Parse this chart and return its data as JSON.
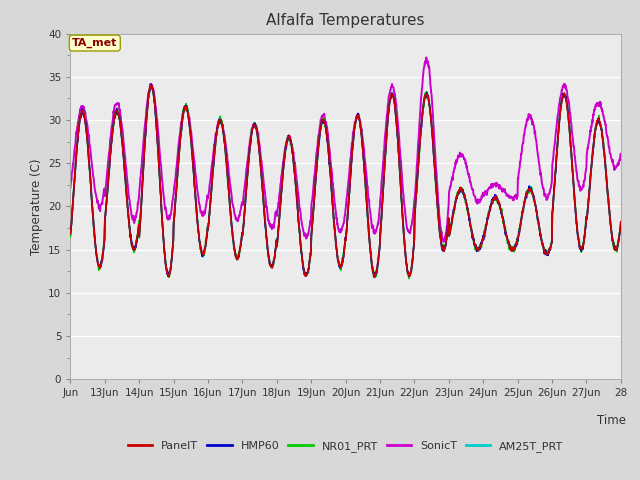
{
  "title": "Alfalfa Temperatures",
  "ylabel": "Temperature (C)",
  "xlabel": "Time",
  "annotation": "TA_met",
  "ylim": [
    0,
    40
  ],
  "yticks": [
    0,
    5,
    10,
    15,
    20,
    25,
    30,
    35,
    40
  ],
  "series": [
    {
      "label": "PanelT",
      "color": "#cc0000",
      "lw": 1.2
    },
    {
      "label": "HMP60",
      "color": "#0000cc",
      "lw": 1.2
    },
    {
      "label": "NR01_PRT",
      "color": "#00cc00",
      "lw": 1.2
    },
    {
      "label": "SonicT",
      "color": "#cc00cc",
      "lw": 1.4
    },
    {
      "label": "AM25T_PRT",
      "color": "#00cccc",
      "lw": 1.2
    }
  ],
  "bg_color": "#d8d8d8",
  "plot_bg": "#ebebeb",
  "annotation_box_color": "#ffffcc",
  "annotation_text_color": "#880000",
  "annotation_edge_color": "#999900",
  "grid_color": "#ffffff",
  "x_start": 12,
  "x_end": 28,
  "xtick_labels": [
    "Jun",
    "13Jun",
    "14Jun",
    "15Jun",
    "16Jun",
    "17Jun",
    "18Jun",
    "19Jun",
    "20Jun",
    "21Jun",
    "22Jun",
    "23Jun",
    "24Jun",
    "25Jun",
    "26Jun",
    "27Jun",
    "28"
  ],
  "xtick_positions": [
    12,
    13,
    14,
    15,
    16,
    17,
    18,
    19,
    20,
    21,
    22,
    23,
    24,
    25,
    26,
    27,
    28
  ],
  "day_peaks": [
    31.0,
    31.0,
    34.0,
    31.5,
    30.0,
    29.5,
    28.0,
    30.0,
    30.5,
    33.0,
    33.0,
    22.0,
    21.0,
    22.0,
    33.0,
    30.0
  ],
  "day_troughs": [
    13.0,
    15.0,
    12.0,
    14.5,
    14.0,
    13.0,
    12.0,
    13.0,
    12.0,
    12.0,
    15.0,
    15.0,
    15.0,
    14.5,
    15.0,
    15.0
  ],
  "sonic_peaks": [
    31.5,
    32.0,
    34.0,
    31.5,
    30.0,
    29.5,
    28.0,
    30.5,
    30.5,
    34.0,
    37.0,
    26.0,
    22.5,
    30.5,
    34.0,
    32.0
  ],
  "sonic_troughs": [
    20.0,
    18.5,
    18.5,
    19.0,
    18.5,
    17.5,
    16.5,
    17.0,
    17.0,
    17.0,
    16.0,
    20.5,
    21.0,
    21.0,
    22.0,
    24.5
  ]
}
